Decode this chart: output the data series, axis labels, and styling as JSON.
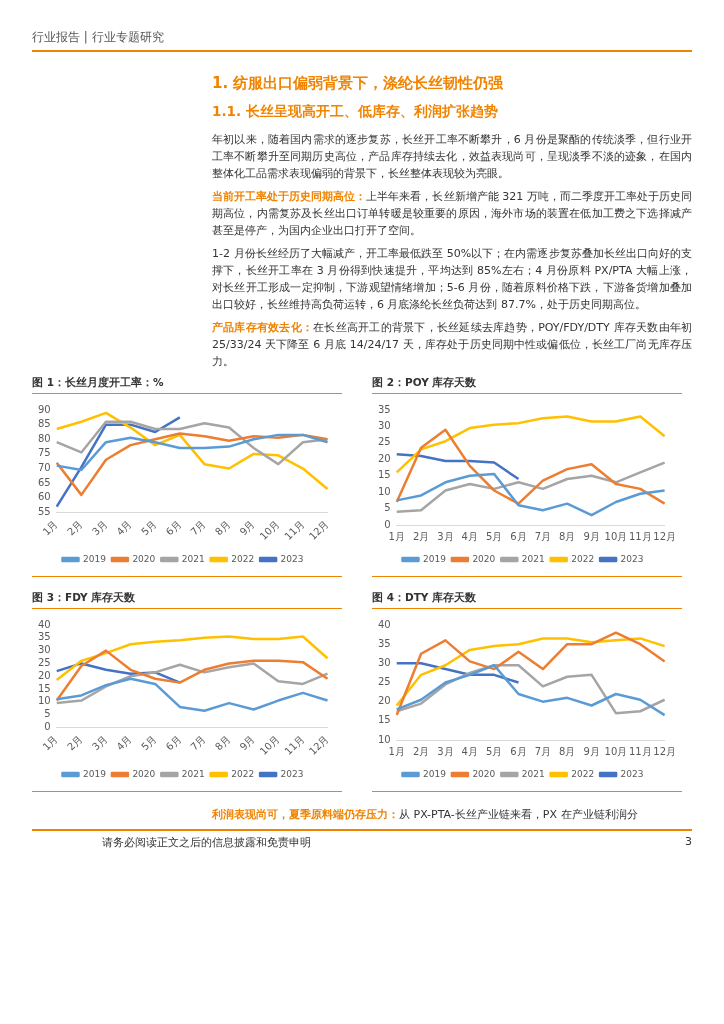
{
  "chart_data": [
    {
      "type": "other",
      "title": "1. 纺服出口偏弱背景下，涤纶长丝韧性仍强",
      "subtitle": "1.1. 长丝呈现高开工、低库存、利润扩张趋势",
      "annotations": [
        "行业报告 | 行业专题研究",
        "年初以来，随着国内需求的逐步复苏，长丝开工率不断攀升，6 月份是聚酯的传统淡季，但行业开工率不断攀升至同期历史高位，产品库存持续去化，效益表现尚可，呈现淡季不淡的迹象，在国内整体化工品需求表现偏弱的背景下，长丝整体表现较为亮眼。",
        "当前开工率处于历史同期高位：上半年来看，长丝新增产能 321 万吨，而二季度开工率处于历史同期高位，内需复苏及长丝出口订单转暖是较重要的原因，海外市场的装置在低加工费之下选择减产甚至是停产，为国内企业出口打开了空间。",
        "1-2 月份长丝经历了大幅减产，开工率最低跌至 50%以下；在内需逐步复苏叠加长丝出口向好的支撑下，长丝开工率在 3 月份得到快速提升，平均达到 85%左右；4 月份原料 PX/PTA 大幅上涨，对长丝开工形成一定抑制，下游观望情绪增加；5-6 月份，随着原料价格下跌，下游备货增加叠加出口较好，长丝维持高负荷运转，6 月底涤纶长丝负荷达到 87.7%，处于历史同期高位。",
        "产品库存有效去化：在长丝高开工的背景下，长丝延续去库趋势，POY/FDY/DTY 库存天数由年初 25/33/24 天下降至 6 月底 14/24/17 天，库存处于历史同期中性或偏低位，长丝工厂尚无库存压力。"
      ]
    },
    {
      "type": "line",
      "title": "图 1：长丝月度开工率：%",
      "categories": [
        "1月",
        "2月",
        "3月",
        "4月",
        "5月",
        "6月",
        "7月",
        "8月",
        "9月",
        "10月",
        "11月",
        "12月"
      ],
      "ylim": [
        55,
        90
      ],
      "yticks": [
        55,
        60,
        65,
        70,
        75,
        80,
        85,
        90
      ],
      "grid": false,
      "legend": "bottom",
      "series": [
        {
          "name": "2019",
          "color": "#5b9bd5",
          "values": [
            71,
            69.5,
            79,
            80.5,
            79,
            77,
            77,
            77.5,
            80,
            81.5,
            81.5,
            79
          ]
        },
        {
          "name": "2020",
          "color": "#ed7d31",
          "values": [
            72,
            61,
            73,
            78,
            80,
            82,
            81,
            79.5,
            81,
            80.5,
            81.5,
            80
          ]
        },
        {
          "name": "2021",
          "color": "#a5a5a5",
          "values": [
            79,
            75.5,
            86,
            86,
            83.5,
            83.5,
            85.5,
            84,
            77,
            71.5,
            79,
            80
          ]
        },
        {
          "name": "2022",
          "color": "#ffc000",
          "values": [
            83.5,
            86,
            89,
            84,
            78,
            81.5,
            71.5,
            70,
            75,
            74.5,
            70,
            63
          ]
        },
        {
          "name": "2023",
          "color": "#4472c4",
          "values": [
            57,
            70.5,
            85,
            85,
            82.5,
            87.5,
            null,
            null,
            null,
            null,
            null,
            null
          ]
        }
      ]
    },
    {
      "type": "line",
      "title": "图 2：POY 库存天数",
      "categories": [
        "1月",
        "2月",
        "3月",
        "4月",
        "5月",
        "6月",
        "7月",
        "8月",
        "9月",
        "10月",
        "11月",
        "12月"
      ],
      "ylim": [
        0,
        35
      ],
      "yticks": [
        0,
        5,
        10,
        15,
        20,
        25,
        30,
        35
      ],
      "grid": false,
      "legend": "bottom",
      "series": [
        {
          "name": "2019",
          "color": "#5b9bd5",
          "values": [
            7.5,
            9,
            13,
            15,
            15.5,
            6,
            4.5,
            6.5,
            3,
            7,
            9.5,
            10.5
          ]
        },
        {
          "name": "2020",
          "color": "#ed7d31",
          "values": [
            7,
            23.5,
            29,
            18,
            10.5,
            6.5,
            13.5,
            17,
            18.5,
            12.5,
            11,
            6.5
          ]
        },
        {
          "name": "2021",
          "color": "#a5a5a5",
          "values": [
            4,
            4.5,
            10.5,
            12.5,
            11,
            13,
            11,
            14,
            15,
            13,
            16,
            19
          ]
        },
        {
          "name": "2022",
          "color": "#ffc000",
          "values": [
            16,
            23,
            25.5,
            29.5,
            30.5,
            31,
            32.5,
            33,
            31.5,
            31.5,
            33,
            27
          ]
        },
        {
          "name": "2023",
          "color": "#4472c4",
          "values": [
            21.5,
            21,
            19.5,
            19.5,
            19,
            14,
            null,
            null,
            null,
            null,
            null,
            null
          ]
        }
      ]
    },
    {
      "type": "line",
      "title": "图 3：FDY 库存天数",
      "categories": [
        "1月",
        "2月",
        "3月",
        "4月",
        "5月",
        "6月",
        "7月",
        "8月",
        "9月",
        "10月",
        "11月",
        "12月"
      ],
      "ylim": [
        0,
        40
      ],
      "yticks": [
        0,
        5,
        10,
        15,
        20,
        25,
        30,
        35,
        40
      ],
      "grid": false,
      "legend": "bottom",
      "series": [
        {
          "name": "2019",
          "color": "#5b9bd5",
          "values": [
            11,
            12.5,
            16.5,
            19,
            17,
            8,
            6.5,
            9.5,
            7,
            10.5,
            13.5,
            10.5
          ]
        },
        {
          "name": "2020",
          "color": "#ed7d31",
          "values": [
            10.5,
            24,
            30,
            22.5,
            19,
            17.5,
            22.5,
            25,
            26,
            26,
            25.5,
            19
          ]
        },
        {
          "name": "2021",
          "color": "#a5a5a5",
          "values": [
            9.5,
            10.5,
            16,
            20,
            21.5,
            24.5,
            21.5,
            23.5,
            25,
            18,
            17,
            21
          ]
        },
        {
          "name": "2022",
          "color": "#ffc000",
          "values": [
            18.5,
            26,
            29,
            32.5,
            33.5,
            34,
            35,
            35.5,
            34.5,
            34.5,
            35.5,
            27
          ]
        },
        {
          "name": "2023",
          "color": "#4472c4",
          "values": [
            22,
            25,
            22.5,
            21,
            21.5,
            17.5,
            null,
            null,
            null,
            null,
            null,
            null
          ]
        }
      ]
    },
    {
      "type": "line",
      "title": "图 4：DTY 库存天数",
      "categories": [
        "1月",
        "2月",
        "3月",
        "4月",
        "5月",
        "6月",
        "7月",
        "8月",
        "9月",
        "10月",
        "11月",
        "12月"
      ],
      "ylim": [
        10,
        40
      ],
      "yticks": [
        10,
        15,
        20,
        25,
        30,
        35,
        40
      ],
      "grid": false,
      "legend": "bottom",
      "series": [
        {
          "name": "2019",
          "color": "#5b9bd5",
          "values": [
            18,
            20.5,
            25,
            27,
            29.5,
            22,
            20,
            21,
            19,
            22,
            20.5,
            16.5
          ]
        },
        {
          "name": "2020",
          "color": "#ed7d31",
          "values": [
            16.5,
            32.5,
            36,
            30.5,
            28.5,
            33,
            28.5,
            35,
            35,
            38,
            35,
            30.5
          ]
        },
        {
          "name": "2021",
          "color": "#a5a5a5",
          "values": [
            17.5,
            19.5,
            24.5,
            27.5,
            29.5,
            29.5,
            24,
            26.5,
            27,
            17,
            17.5,
            20.5
          ]
        },
        {
          "name": "2022",
          "color": "#ffc000",
          "values": [
            19,
            27,
            29.5,
            33.5,
            34.5,
            35,
            36.5,
            36.5,
            35.5,
            36,
            36.5,
            34.5
          ]
        },
        {
          "name": "2023",
          "color": "#4472c4",
          "values": [
            30,
            30,
            28.5,
            27,
            27,
            25,
            null,
            null,
            null,
            null,
            null,
            null
          ]
        }
      ]
    },
    {
      "type": "other",
      "annotations": [
        "利润表现尚可，夏季原料端仍存压力：从 PX-PTA-长丝产业链来看，PX 在产业链利润分",
        "请务必阅读正文之后的信息披露和免责申明",
        "3"
      ]
    }
  ]
}
